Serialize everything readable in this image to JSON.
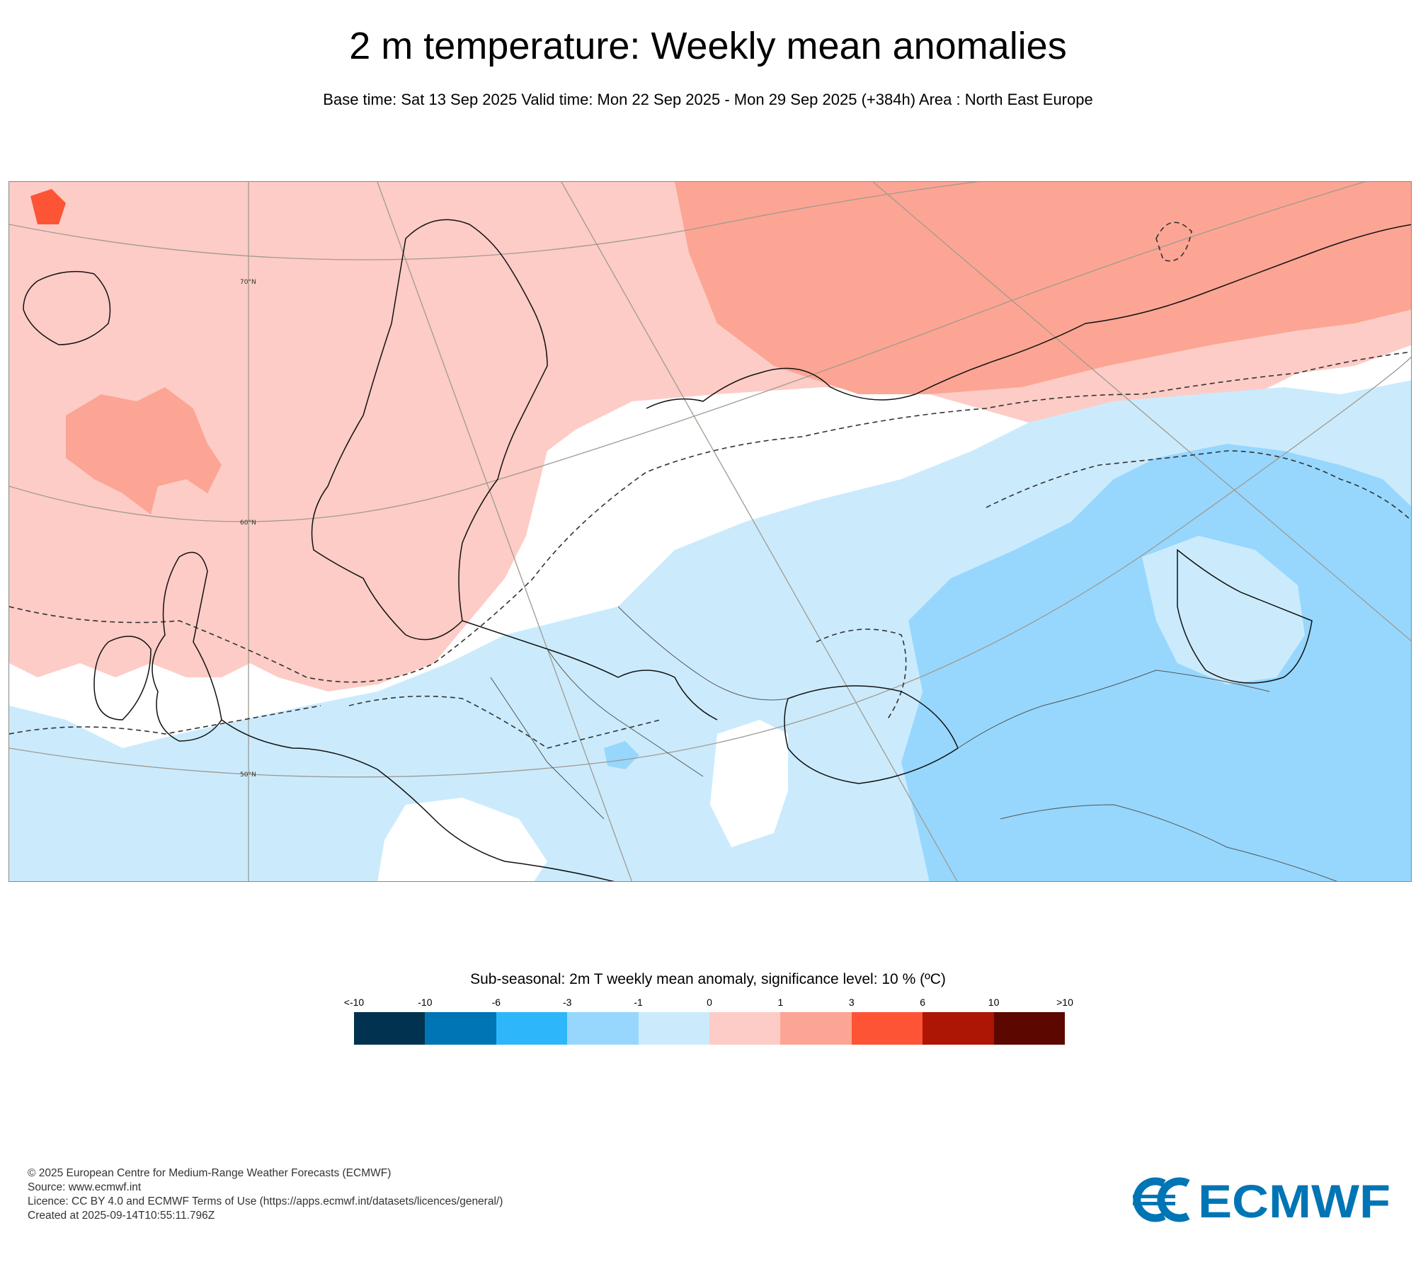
{
  "header": {
    "title": "2 m temperature: Weekly mean anomalies",
    "subtitle": "Base time: Sat 13 Sep 2025 Valid time: Mon 22 Sep 2025 - Mon 29 Sep 2025 (+384h) Area : North East Europe"
  },
  "map": {
    "lat_labels": [
      "70°N",
      "60°N",
      "50°N"
    ]
  },
  "legend": {
    "title": "Sub-seasonal: 2m T weekly mean anomaly, significance level: 10 % (ºC)",
    "ticks": [
      "<-10",
      "-10",
      "-6",
      "-3",
      "-1",
      "0",
      "1",
      "3",
      "6",
      "10",
      ">10"
    ],
    "colors": [
      "#01324f",
      "#0075b5",
      "#2eb6fb",
      "#97d7fe",
      "#cbebfd",
      "#fdccc6",
      "#fca594",
      "#fd5436",
      "#ad1504",
      "#5c0801"
    ]
  },
  "footer": {
    "line1": "© 2025 European Centre for Medium-Range Weather Forecasts (ECMWF)",
    "line2": "Source: www.ecmwf.int",
    "line3": "Licence: CC BY 4.0 and ECMWF Terms of Use (https://apps.ecmwf.int/datasets/licences/general/)",
    "line4": "Created at 2025-09-14T10:55:11.796Z"
  },
  "logo": {
    "text": "ECMWF",
    "color": "#0075b5"
  }
}
